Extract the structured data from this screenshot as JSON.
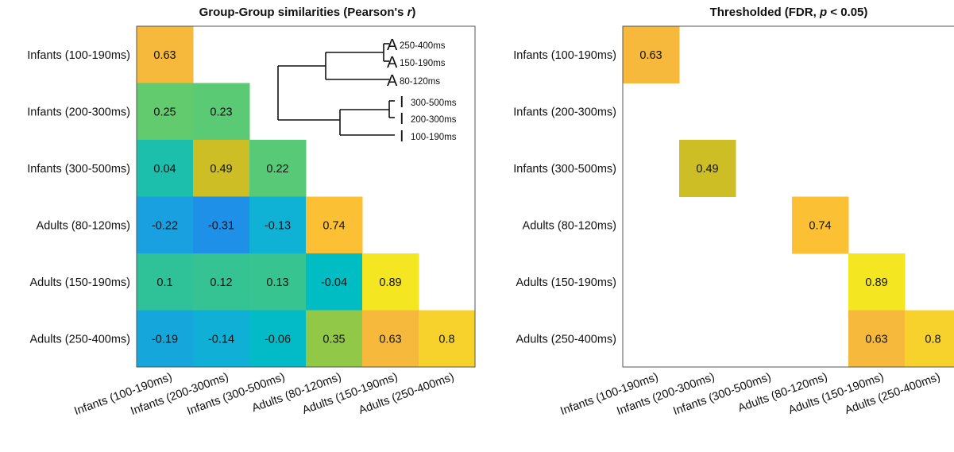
{
  "chart_data": [
    {
      "type": "heatmap",
      "title_main": "Group-Group similarities (Pearson's ",
      "title_italic": "r",
      "title_tail": ")",
      "row_labels": [
        "Infants (100-190ms)",
        "Infants (200-300ms)",
        "Infants (300-500ms)",
        "Adults (80-120ms)",
        "Adults (150-190ms)",
        "Adults (250-400ms)"
      ],
      "col_labels": [
        "Infants (100-190ms)",
        "Infants (200-300ms)",
        "Infants (300-500ms)",
        "Adults (80-120ms)",
        "Adults (150-190ms)",
        "Adults (250-400ms)"
      ],
      "values": [
        [
          0.63,
          null,
          null,
          null,
          null,
          null
        ],
        [
          0.25,
          0.23,
          null,
          null,
          null,
          null
        ],
        [
          0.04,
          0.49,
          0.22,
          null,
          null,
          null
        ],
        [
          -0.22,
          -0.31,
          -0.13,
          0.74,
          null,
          null
        ],
        [
          0.1,
          0.12,
          0.13,
          -0.04,
          0.89,
          null
        ],
        [
          -0.19,
          -0.14,
          -0.06,
          0.35,
          0.63,
          0.8
        ]
      ],
      "colorscale": "parula",
      "dendrogram": {
        "leaves": [
          {
            "letter": "A",
            "label": "250-400ms"
          },
          {
            "letter": "A",
            "label": "150-190ms"
          },
          {
            "letter": "A",
            "label": "80-120ms"
          },
          {
            "letter": "I",
            "label": "300-500ms"
          },
          {
            "letter": "I",
            "label": "200-300ms"
          },
          {
            "letter": "I",
            "label": "100-190ms"
          }
        ]
      }
    },
    {
      "type": "heatmap",
      "title_main": "Thresholded (FDR,  ",
      "title_italic": "p",
      "title_tail": " < 0.05)",
      "row_labels": [
        "Infants (100-190ms)",
        "Infants (200-300ms)",
        "Infants (300-500ms)",
        "Adults (80-120ms)",
        "Adults (150-190ms)",
        "Adults (250-400ms)"
      ],
      "col_labels": [
        "Infants (100-190ms)",
        "Infants (200-300ms)",
        "Infants (300-500ms)",
        "Adults (80-120ms)",
        "Adults (150-190ms)",
        "Adults (250-400ms)"
      ],
      "values": [
        [
          0.63,
          null,
          null,
          null,
          null,
          null
        ],
        [
          null,
          null,
          null,
          null,
          null,
          null
        ],
        [
          null,
          0.49,
          null,
          null,
          null,
          null
        ],
        [
          null,
          null,
          null,
          0.74,
          null,
          null
        ],
        [
          null,
          null,
          null,
          null,
          0.89,
          null
        ],
        [
          null,
          null,
          null,
          null,
          0.63,
          0.8
        ]
      ],
      "colorscale": "parula"
    }
  ]
}
